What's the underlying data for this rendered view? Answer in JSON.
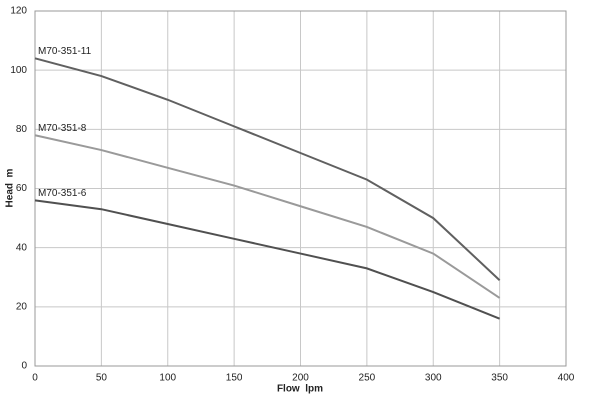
{
  "chart_data": {
    "type": "line",
    "x_label": "Flow  lpm",
    "y_label": "Head  m",
    "x": [
      0,
      50,
      100,
      150,
      200,
      250,
      300,
      350
    ],
    "series": [
      {
        "name": "M70-351-11",
        "color": "#606060",
        "values": [
          104,
          98,
          90,
          81,
          72,
          63,
          50,
          29
        ]
      },
      {
        "name": "M70-351-8",
        "color": "#9a9a9a",
        "values": [
          78,
          73,
          67,
          61,
          54,
          47,
          38,
          23
        ]
      },
      {
        "name": "M70-351-6",
        "color": "#505050",
        "values": [
          56,
          53,
          48,
          43,
          38,
          33,
          25,
          16
        ]
      }
    ],
    "xlim": [
      0,
      400
    ],
    "xticks": [
      0,
      50,
      100,
      150,
      200,
      250,
      300,
      350,
      400
    ],
    "ylim": [
      0,
      120
    ],
    "yticks": [
      0,
      20,
      40,
      60,
      80,
      100,
      120
    ],
    "grid": true
  }
}
